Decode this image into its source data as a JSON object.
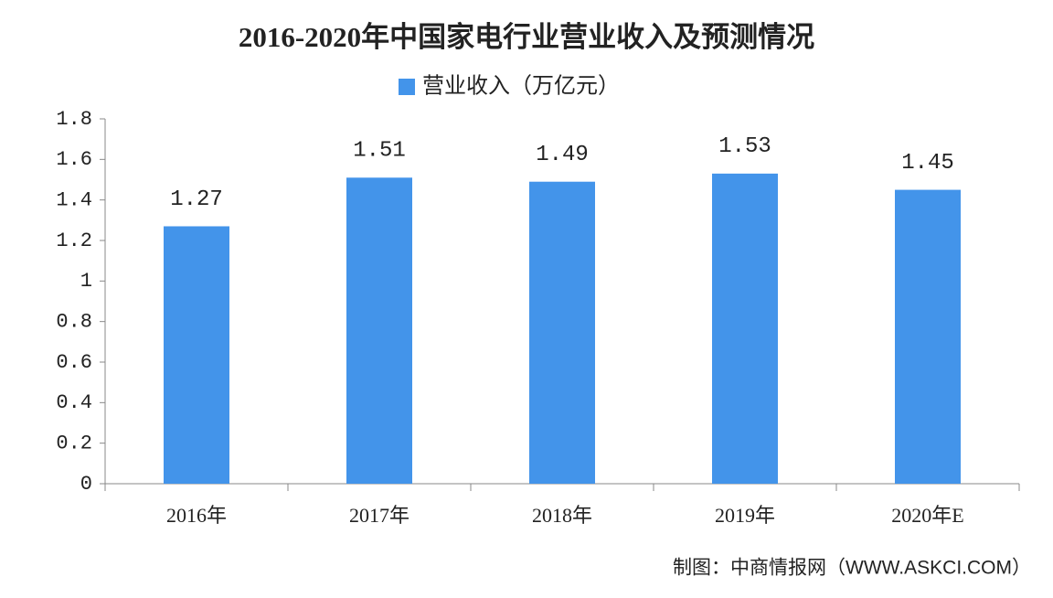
{
  "chart_data": {
    "type": "bar",
    "title": "2016-2020年中国家电行业营业收入及预测情况",
    "categories": [
      "2016年",
      "2017年",
      "2018年",
      "2019年",
      "2020年E"
    ],
    "series": [
      {
        "name": "营业收入（万亿元）",
        "color": "#4394ea",
        "values": [
          1.27,
          1.51,
          1.49,
          1.53,
          1.45
        ]
      }
    ],
    "ylim": [
      0,
      1.8
    ],
    "yticks": [
      0,
      0.2,
      0.4,
      0.6,
      0.8,
      1,
      1.2,
      1.4,
      1.6,
      1.8
    ],
    "source": "制图：中商情报网（WWW.ASKCI.COM）"
  }
}
